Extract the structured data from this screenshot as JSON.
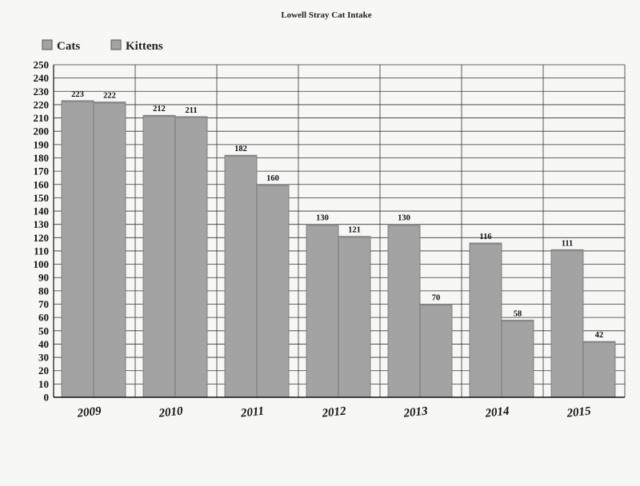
{
  "chart_data": {
    "type": "bar",
    "title": "Lowell Stray Cat Intake",
    "categories": [
      "2009",
      "2010",
      "2011",
      "2012",
      "2013",
      "2014",
      "2015"
    ],
    "series": [
      {
        "name": "Cats",
        "values": [
          223,
          212,
          182,
          130,
          130,
          116,
          111
        ],
        "labels": [
          "223",
          "212",
          "182",
          "130",
          "130",
          "116",
          "111"
        ]
      },
      {
        "name": "Kittens",
        "values": [
          222,
          211,
          160,
          121,
          70,
          58,
          42
        ],
        "labels": [
          "222",
          "211",
          "160",
          "121",
          "70",
          "58",
          "42"
        ]
      }
    ],
    "ylim": [
      0,
      250
    ],
    "yticks": [
      "0",
      "10",
      "20",
      "30",
      "40",
      "50",
      "60",
      "70",
      "80",
      "90",
      "100",
      "110",
      "120",
      "130",
      "140",
      "150",
      "160",
      "170",
      "180",
      "190",
      "200",
      "210",
      "220",
      "230",
      "240",
      "250"
    ],
    "xlabel": "",
    "ylabel": "",
    "grid": true,
    "legend_position": "top-left",
    "colors": {
      "bar": "#a3a3a3",
      "bar_edge": "#6e6e6e",
      "bar_top": "#8a8a8a",
      "grid": "#333333",
      "background": "#f7f7f5"
    }
  }
}
